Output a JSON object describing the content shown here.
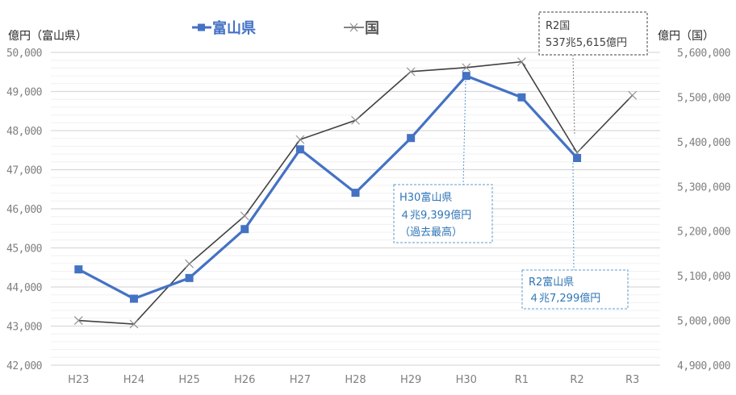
{
  "chart_data": {
    "type": "line",
    "title": "",
    "categories": [
      "H23",
      "H24",
      "H25",
      "H26",
      "H27",
      "H28",
      "H29",
      "H30",
      "R1",
      "R2",
      "R3"
    ],
    "xlabel": "",
    "ylabel_left": "億円（富山県）",
    "ylabel_right": "億円（国）",
    "ylim_left": [
      42000,
      50000
    ],
    "ylim_right": [
      4900000,
      5600000
    ],
    "yticks_left": [
      "42,000",
      "43,000",
      "44,000",
      "45,000",
      "46,000",
      "47,000",
      "48,000",
      "49,000",
      "50,000"
    ],
    "yticks_right": [
      "4,900,000",
      "5,000,000",
      "5,100,000",
      "5,200,000",
      "5,300,000",
      "5,400,000",
      "5,500,000",
      "5,600,000"
    ],
    "grid": true,
    "legend_position": "top",
    "series": [
      {
        "name": "富山県",
        "axis": "left",
        "color": "#4472c4",
        "marker": "square",
        "values": [
          44450,
          43700,
          44230,
          45480,
          47520,
          46410,
          47810,
          49399,
          48850,
          47299,
          null
        ]
      },
      {
        "name": "国",
        "axis": "right",
        "color": "#404040",
        "marker": "x",
        "values": [
          5000000,
          4992000,
          5127000,
          5234000,
          5405000,
          5448000,
          5557000,
          5566000,
          5579000,
          5375615,
          5504000
        ]
      }
    ],
    "annotations": [
      {
        "id": "h30_pref",
        "lines": [
          "H30富山県",
          "４兆9,399億円",
          "（過去最高）"
        ],
        "series": "富山県",
        "category": "H30"
      },
      {
        "id": "r2_pref",
        "lines": [
          "R2富山県",
          "４兆7,299億円"
        ],
        "series": "富山県",
        "category": "R2"
      },
      {
        "id": "r2_nat",
        "lines": [
          "R2国",
          "537兆5,615億円"
        ],
        "series": "国",
        "category": "R2"
      }
    ]
  },
  "legend": {
    "pref_label": "富山県",
    "nat_label": "国"
  },
  "axes": {
    "left_title": "億円（富山県）",
    "right_title": "億円（国）"
  },
  "colors": {
    "pref": "#4472c4",
    "nat": "#404040",
    "grid_major": "#d9d9d9",
    "grid_minor": "#f0f0f0",
    "callout_blue_border": "#5b9bd5",
    "callout_blue_text": "#2e75b6",
    "callout_gray_border": "#404040"
  }
}
